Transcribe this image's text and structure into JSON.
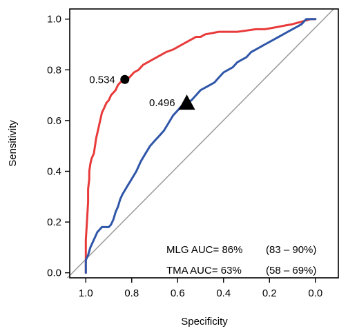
{
  "chart_data": {
    "type": "line",
    "title": "",
    "xlabel": "Specificity",
    "ylabel": "Sensitivity",
    "x_reversed": true,
    "xlim": [
      1.07,
      -0.1
    ],
    "ylim": [
      -0.02,
      1.04
    ],
    "x_ticks": [
      1.0,
      0.8,
      0.6,
      0.4,
      0.2,
      0.0
    ],
    "x_tick_labels": [
      "1.0",
      "0.8",
      "0.6",
      "0.4",
      "0.2",
      "0.0"
    ],
    "y_ticks": [
      0.0,
      0.2,
      0.4,
      0.6,
      0.8,
      1.0
    ],
    "y_tick_labels": [
      "0.0",
      "0.2",
      "0.4",
      "0.6",
      "0.8",
      "1.0"
    ],
    "grid": false,
    "legend_position": "bottom-right",
    "reference_line": {
      "x": [
        1.08,
        -0.08
      ],
      "y": [
        -0.08,
        1.08
      ],
      "color": "#9a9a9a"
    },
    "series": [
      {
        "name": "MLG",
        "color": "#e83a3a",
        "x": [
          1.0,
          1.0,
          0.995,
          0.99,
          0.99,
          0.985,
          0.985,
          0.98,
          0.975,
          0.97,
          0.965,
          0.96,
          0.955,
          0.95,
          0.945,
          0.94,
          0.935,
          0.93,
          0.92,
          0.91,
          0.9,
          0.89,
          0.88,
          0.87,
          0.86,
          0.85,
          0.84,
          0.83,
          0.81,
          0.79,
          0.77,
          0.75,
          0.73,
          0.71,
          0.69,
          0.67,
          0.65,
          0.62,
          0.6,
          0.58,
          0.56,
          0.54,
          0.52,
          0.5,
          0.48,
          0.45,
          0.42,
          0.4,
          0.37,
          0.34,
          0.3,
          0.26,
          0.22,
          0.19,
          0.16,
          0.13,
          0.1,
          0.08,
          0.06,
          0.04,
          0.02,
          0.0
        ],
        "y": [
          0.0,
          0.13,
          0.2,
          0.28,
          0.33,
          0.37,
          0.4,
          0.43,
          0.45,
          0.46,
          0.47,
          0.5,
          0.53,
          0.55,
          0.57,
          0.59,
          0.61,
          0.63,
          0.65,
          0.67,
          0.68,
          0.7,
          0.71,
          0.72,
          0.74,
          0.75,
          0.76,
          0.762,
          0.77,
          0.79,
          0.8,
          0.82,
          0.83,
          0.84,
          0.85,
          0.86,
          0.87,
          0.88,
          0.89,
          0.9,
          0.91,
          0.92,
          0.93,
          0.93,
          0.94,
          0.945,
          0.95,
          0.95,
          0.95,
          0.95,
          0.955,
          0.96,
          0.96,
          0.965,
          0.97,
          0.975,
          0.98,
          0.985,
          0.99,
          0.995,
          1.0,
          1.0
        ]
      },
      {
        "name": "TMA",
        "color": "#2f56a8",
        "x": [
          1.0,
          1.0,
          0.99,
          0.98,
          0.97,
          0.96,
          0.95,
          0.94,
          0.93,
          0.92,
          0.91,
          0.9,
          0.89,
          0.88,
          0.87,
          0.86,
          0.85,
          0.84,
          0.82,
          0.8,
          0.78,
          0.76,
          0.74,
          0.72,
          0.7,
          0.68,
          0.66,
          0.64,
          0.62,
          0.6,
          0.58,
          0.56,
          0.54,
          0.52,
          0.5,
          0.48,
          0.46,
          0.44,
          0.42,
          0.4,
          0.38,
          0.36,
          0.34,
          0.32,
          0.3,
          0.28,
          0.26,
          0.24,
          0.22,
          0.2,
          0.18,
          0.16,
          0.14,
          0.12,
          0.1,
          0.08,
          0.06,
          0.05,
          0.04,
          0.02,
          0.0
        ],
        "y": [
          0.0,
          0.05,
          0.07,
          0.1,
          0.12,
          0.14,
          0.16,
          0.17,
          0.18,
          0.18,
          0.18,
          0.18,
          0.19,
          0.21,
          0.24,
          0.26,
          0.29,
          0.31,
          0.34,
          0.37,
          0.4,
          0.44,
          0.47,
          0.5,
          0.52,
          0.54,
          0.56,
          0.59,
          0.62,
          0.64,
          0.66,
          0.67,
          0.68,
          0.7,
          0.72,
          0.73,
          0.74,
          0.75,
          0.77,
          0.79,
          0.8,
          0.81,
          0.83,
          0.84,
          0.85,
          0.87,
          0.88,
          0.89,
          0.9,
          0.91,
          0.92,
          0.93,
          0.94,
          0.95,
          0.96,
          0.97,
          0.98,
          0.99,
          1.0,
          1.0,
          1.0
        ]
      }
    ],
    "markers": [
      {
        "series": "MLG",
        "shape": "circle",
        "x": 0.83,
        "y": 0.762,
        "label": "0.534"
      },
      {
        "series": "TMA",
        "shape": "triangle",
        "x": 0.56,
        "y": 0.67,
        "label": "0.496"
      }
    ],
    "legend": [
      {
        "label": "MLG AUC= 86%",
        "ci": "(83 – 90%)"
      },
      {
        "label": "TMA AUC= 63%",
        "ci": "(58 – 69%)"
      }
    ]
  }
}
